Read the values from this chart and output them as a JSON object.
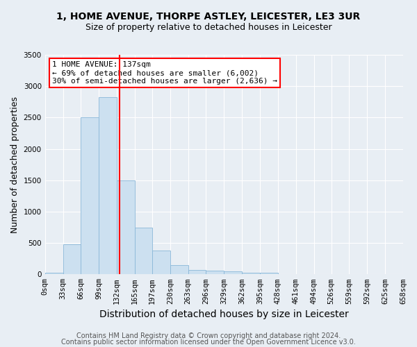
{
  "title": "1, HOME AVENUE, THORPE ASTLEY, LEICESTER, LE3 3UR",
  "subtitle": "Size of property relative to detached houses in Leicester",
  "xlabel": "Distribution of detached houses by size in Leicester",
  "ylabel": "Number of detached properties",
  "bar_color": "#cce0f0",
  "bar_edge_color": "#8ab8d8",
  "bin_edges": [
    0,
    33,
    66,
    99,
    132,
    165,
    197,
    230,
    263,
    296,
    329,
    362,
    395,
    428,
    461,
    494,
    526,
    559,
    592,
    625,
    658
  ],
  "bar_heights": [
    20,
    475,
    2500,
    2820,
    1500,
    750,
    375,
    150,
    75,
    60,
    50,
    25,
    20,
    5,
    3,
    2,
    1,
    1,
    0,
    0
  ],
  "red_line_x": 137,
  "annotation_line1": "1 HOME AVENUE: 137sqm",
  "annotation_line2": "← 69% of detached houses are smaller (6,002)",
  "annotation_line3": "30% of semi-detached houses are larger (2,636) →",
  "annotation_box_color": "white",
  "annotation_edge_color": "red",
  "ylim": [
    0,
    3500
  ],
  "yticks": [
    0,
    500,
    1000,
    1500,
    2000,
    2500,
    3000,
    3500
  ],
  "footer1": "Contains HM Land Registry data © Crown copyright and database right 2024.",
  "footer2": "Contains public sector information licensed under the Open Government Licence v3.0.",
  "background_color": "#e8eef4",
  "plot_bg_color": "#e8eef4",
  "grid_color": "white",
  "title_fontsize": 10,
  "subtitle_fontsize": 9,
  "axis_label_fontsize": 9,
  "tick_fontsize": 7.5,
  "footer_fontsize": 7
}
